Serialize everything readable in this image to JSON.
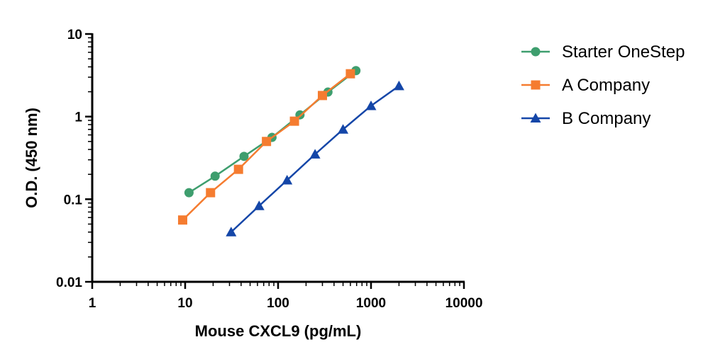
{
  "chart_data": {
    "type": "scatter",
    "title": "",
    "xlabel": "Mouse CXCL9 (pg/mL)",
    "ylabel": "O.D. (450 nm)",
    "xscale": "log",
    "yscale": "log",
    "xlim": [
      1,
      10000
    ],
    "ylim": [
      0.01,
      10
    ],
    "xticks": [
      "1",
      "10",
      "100",
      "1000",
      "10000"
    ],
    "yticks": [
      "0.01",
      "0.1",
      "1",
      "10"
    ],
    "grid": false,
    "legend_position": "right",
    "series": [
      {
        "name": "Starter OneStep",
        "color": "#3e9e6e",
        "marker": "circle",
        "x": [
          11,
          21,
          43,
          86,
          172,
          344,
          688
        ],
        "y": [
          0.12,
          0.19,
          0.33,
          0.56,
          1.05,
          1.98,
          3.6
        ]
      },
      {
        "name": "A Company",
        "color": "#f57c30",
        "marker": "square",
        "x": [
          9.4,
          18.75,
          37.5,
          75,
          150,
          300,
          600
        ],
        "y": [
          0.056,
          0.12,
          0.23,
          0.5,
          0.88,
          1.8,
          3.3
        ]
      },
      {
        "name": "B Company",
        "color": "#1446a8",
        "marker": "triangle",
        "x": [
          31.25,
          62.5,
          125,
          250,
          500,
          1000,
          2000
        ],
        "y": [
          0.04,
          0.083,
          0.17,
          0.35,
          0.7,
          1.35,
          2.35
        ]
      }
    ]
  }
}
